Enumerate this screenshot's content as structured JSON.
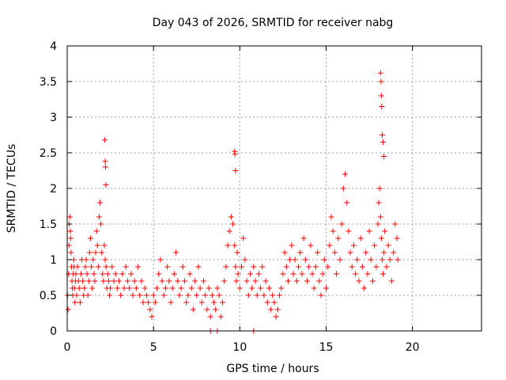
{
  "chart_data": {
    "type": "scatter",
    "title": "Day 043 of 2026, SRMTID for receiver nabg",
    "xlabel": "GPS time / hours",
    "ylabel": "SRMTID / TECUs",
    "xlim": [
      0,
      24
    ],
    "ylim": [
      0,
      4
    ],
    "x_ticks": [
      0,
      5,
      10,
      15,
      20
    ],
    "y_ticks": [
      0,
      0.5,
      1,
      1.5,
      2,
      2.5,
      3,
      3.5,
      4
    ],
    "grid": true,
    "marker": "+",
    "color": "#ff0000",
    "series": [
      {
        "envelope_note_removed": true,
        "points": {
          "x": [
            0.02,
            0.05,
            0.08,
            0.1,
            0.12,
            0.15,
            0.18,
            0.2,
            0.22,
            0.25,
            0.28,
            0.3,
            0.32,
            0.35,
            0.38,
            0.4,
            0.42,
            0.45,
            0.48,
            0.5,
            0.55,
            0.6,
            0.65,
            0.7,
            0.75,
            0.8,
            0.85,
            0.9,
            0.95,
            1.0,
            1.05,
            1.1,
            1.15,
            1.2,
            1.25,
            1.3,
            1.35,
            1.4,
            1.45,
            1.5,
            1.55,
            1.6,
            1.65,
            1.7,
            1.75,
            1.8,
            1.85,
            1.9,
            1.95,
            2.0,
            2.05,
            2.1,
            2.15,
            2.2,
            2.25,
            2.3,
            2.35,
            2.4,
            2.45,
            2.5,
            2.6,
            2.7,
            2.8,
            2.9,
            3.0,
            3.1,
            3.2,
            3.3,
            3.4,
            3.5,
            3.6,
            3.7,
            3.8,
            3.9,
            4.0,
            4.1,
            4.2,
            4.3,
            4.4,
            4.5,
            4.6,
            4.7,
            4.8,
            4.9,
            5.0,
            5.1,
            5.2,
            5.3,
            5.4,
            5.5,
            5.6,
            5.7,
            5.8,
            5.9,
            6.0,
            6.1,
            6.2,
            6.3,
            6.4,
            6.5,
            6.6,
            6.7,
            6.8,
            6.9,
            7.0,
            7.1,
            7.2,
            7.3,
            7.4,
            7.5,
            7.6,
            7.7,
            7.8,
            7.9,
            8.0,
            8.1,
            8.2,
            8.3,
            8.4,
            8.5,
            8.6,
            8.7,
            8.8,
            8.9,
            9.0,
            9.1,
            9.2,
            9.3,
            9.4,
            9.5,
            9.6,
            9.7,
            9.75,
            9.8,
            9.85,
            9.9,
            10.0,
            10.1,
            10.2,
            10.3,
            10.4,
            10.5,
            10.6,
            10.7,
            10.8,
            10.9,
            11.0,
            11.1,
            11.2,
            11.3,
            11.4,
            11.5,
            11.6,
            11.7,
            11.8,
            11.9,
            12.0,
            12.1,
            12.2,
            12.3,
            12.4,
            12.5,
            12.6,
            12.7,
            12.8,
            12.9,
            13.0,
            13.1,
            13.2,
            13.3,
            13.4,
            13.5,
            13.6,
            13.7,
            13.8,
            13.9,
            14.0,
            14.1,
            14.2,
            14.3,
            14.4,
            14.5,
            14.6,
            14.7,
            14.8,
            14.9,
            15.0,
            15.1,
            15.2,
            15.3,
            15.4,
            15.5,
            15.6,
            15.7,
            15.8,
            15.9,
            16.0,
            16.1,
            16.2,
            16.3,
            16.4,
            16.5,
            16.6,
            16.7,
            16.8,
            16.9,
            17.0,
            17.1,
            17.2,
            17.3,
            17.4,
            17.5,
            17.6,
            17.7,
            17.8,
            17.9,
            18.0,
            18.05,
            18.1,
            18.15,
            18.2,
            18.25,
            18.3,
            18.35,
            18.4,
            18.5,
            18.6,
            18.7,
            18.8,
            18.9,
            19.0,
            19.1,
            19.15,
            2.18,
            2.2,
            2.22,
            2.24,
            9.7,
            9.72,
            9.75,
            18.15,
            18.18,
            18.2,
            18.22,
            18.25,
            18.3,
            18.35,
            8.3,
            8.7,
            10.8
          ],
          "y": [
            0.5,
            0.3,
            0.8,
            1.2,
            1.5,
            1.6,
            1.4,
            1.3,
            1.1,
            0.9,
            0.7,
            0.6,
            0.5,
            0.8,
            1.0,
            0.9,
            0.6,
            0.4,
            0.7,
            0.8,
            0.5,
            0.9,
            0.7,
            0.6,
            0.4,
            0.8,
            1.0,
            0.7,
            0.5,
            0.6,
            0.9,
            1.0,
            0.8,
            0.5,
            0.7,
            1.1,
            1.3,
            0.9,
            0.6,
            1.0,
            0.8,
            0.7,
            1.1,
            1.4,
            1.2,
            0.9,
            1.6,
            1.8,
            1.5,
            1.1,
            0.8,
            0.7,
            1.2,
            1.0,
            0.9,
            0.6,
            0.8,
            0.7,
            0.5,
            0.6,
            0.9,
            0.7,
            0.8,
            0.6,
            0.7,
            0.5,
            0.8,
            0.6,
            0.9,
            0.7,
            0.6,
            0.8,
            0.5,
            0.7,
            0.6,
            0.9,
            0.5,
            0.7,
            0.4,
            0.6,
            0.5,
            0.4,
            0.3,
            0.2,
            0.5,
            0.4,
            0.6,
            0.8,
            1.0,
            0.7,
            0.5,
            0.6,
            0.9,
            0.7,
            0.4,
            0.6,
            0.8,
            1.1,
            0.7,
            0.5,
            0.6,
            0.9,
            0.7,
            0.4,
            0.5,
            0.8,
            0.6,
            0.3,
            0.7,
            0.5,
            0.9,
            0.6,
            0.4,
            0.7,
            0.5,
            0.3,
            0.6,
            0.2,
            0.5,
            0.4,
            0.3,
            0.6,
            0.5,
            0.2,
            0.4,
            0.7,
            0.9,
            1.2,
            1.4,
            1.6,
            1.5,
            1.2,
            0.9,
            0.7,
            1.1,
            0.8,
            0.6,
            0.9,
            1.3,
            1.0,
            0.7,
            0.5,
            0.8,
            0.6,
            0.9,
            0.7,
            0.5,
            0.8,
            0.6,
            0.9,
            0.5,
            0.7,
            0.4,
            0.6,
            0.3,
            0.5,
            0.4,
            0.2,
            0.3,
            0.5,
            0.6,
            0.8,
            1.1,
            0.9,
            0.7,
            1.0,
            1.2,
            0.8,
            1.0,
            0.7,
            0.9,
            1.1,
            0.8,
            1.3,
            1.0,
            0.7,
            0.9,
            1.2,
            0.8,
            0.6,
            0.9,
            1.1,
            0.7,
            0.5,
            0.8,
            1.0,
            0.6,
            0.9,
            1.2,
            1.6,
            1.4,
            1.1,
            0.8,
            1.3,
            1.0,
            1.5,
            2.0,
            2.2,
            1.8,
            1.4,
            1.1,
            0.9,
            1.2,
            0.8,
            1.0,
            0.7,
            1.3,
            0.9,
            0.6,
            1.1,
            0.8,
            1.4,
            1.0,
            0.7,
            1.2,
            0.9,
            1.5,
            1.8,
            2.0,
            1.6,
            1.3,
            1.0,
            0.8,
            1.1,
            1.4,
            0.9,
            1.2,
            1.0,
            0.7,
            1.1,
            1.5,
            1.3,
            1.0,
            2.68,
            2.38,
            2.3,
            2.05,
            2.52,
            2.48,
            2.25,
            3.62,
            3.5,
            3.3,
            3.15,
            2.75,
            2.65,
            2.45,
            0,
            0,
            0
          ]
        }
      }
    ]
  }
}
